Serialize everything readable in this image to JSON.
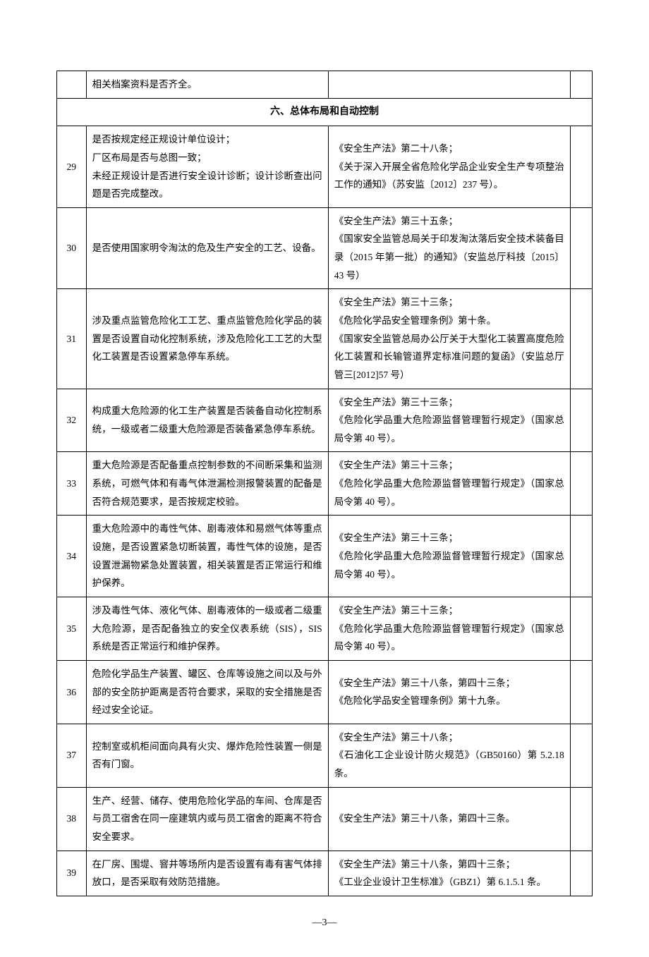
{
  "topRow": {
    "desc": "相关档案资料是否齐全。"
  },
  "sectionHeader": "六、总体布局和自动控制",
  "rows": [
    {
      "num": "29",
      "desc": "是否按规定经正规设计单位设计；\n厂区布局是否与总图一致；\n未经正规设计是否进行安全设计诊断；设计诊断查出问题是否完成整改。",
      "ref": "《安全生产法》第二十八条；\n《关于深入开展全省危险化学品企业安全生产专项整治工作的通知》（苏安监〔2012〕237 号）。"
    },
    {
      "num": "30",
      "desc": "是否使用国家明令淘汰的危及生产安全的工艺、设备。",
      "ref": "《安全生产法》第三十五条；\n《国家安全监管总局关于印发淘汰落后安全技术装备目录（2015 年第一批）的通知》（安监总厅科技〔2015〕43 号）"
    },
    {
      "num": "31",
      "desc": "涉及重点监管危险化工工艺、重点监管危险化学品的装置是否设置自动化控制系统，涉及危险化工工艺的大型化工装置是否设置紧急停车系统。",
      "ref": "《安全生产法》第三十三条；\n《危险化学品安全管理条例》第十条。\n《国家安全监管总局办公厅关于大型化工装置高度危险化工装置和长输管道界定标准问题的复函》（安监总厅管三[2012]57 号）"
    },
    {
      "num": "32",
      "desc": "构成重大危险源的化工生产装置是否装备自动化控制系统，一级或者二级重大危险源是否装备紧急停车系统。",
      "ref": "《安全生产法》第三十三条；\n《危险化学品重大危险源监督管理暂行规定》（国家总局令第 40 号）。"
    },
    {
      "num": "33",
      "desc": "重大危险源是否配备重点控制参数的不间断采集和监测系统，可燃气体和有毒气体泄漏检测报警装置的配备是否符合规范要求，是否按规定校验。",
      "ref": "《安全生产法》第三十三条；\n《危险化学品重大危险源监督管理暂行规定》（国家总局令第 40 号）。"
    },
    {
      "num": "34",
      "desc": "重大危险源中的毒性气体、剧毒液体和易燃气体等重点设施，是否设置紧急切断装置，毒性气体的设施，是否设置泄漏物紧急处置装置，相关装置是否正常运行和维护保养。",
      "ref": "《安全生产法》第三十三条；\n《危险化学品重大危险源监督管理暂行规定》（国家总局令第 40 号）。"
    },
    {
      "num": "35",
      "desc": "涉及毒性气体、液化气体、剧毒液体的一级或者二级重大危险源，是否配备独立的安全仪表系统（SIS），SIS 系统是否正常运行和维护保养。",
      "ref": "《安全生产法》第三十三条；\n《危险化学品重大危险源监督管理暂行规定》（国家总局令第 40 号）。"
    },
    {
      "num": "36",
      "desc": "危险化学品生产装置、罐区、仓库等设施之间以及与外部的安全防护距离是否符合要求，采取的安全措施是否经过安全论证。",
      "ref": "《安全生产法》第三十八条，第四十三条；\n《危险化学品安全管理条例》第十九条。"
    },
    {
      "num": "37",
      "desc": "控制室或机柜间面向具有火灾、爆炸危险性装置一侧是否有门窗。",
      "ref": "《安全生产法》第三十八条；\n《石油化工企业设计防火规范》（GB50160）第 5.2.18 条。"
    },
    {
      "num": "38",
      "desc": "生产、经营、储存、使用危险化学品的车间、仓库是否与员工宿舍在同一座建筑内或与员工宿舍的距离不符合安全要求。",
      "ref": "《安全生产法》第三十八条，第四十三条。"
    },
    {
      "num": "39",
      "desc": "在厂房、围堤、窨井等场所内是否设置有毒有害气体排放口，是否采取有效防范措施。",
      "ref": "《安全生产法》第三十八条，第四十三条；\n《工业企业设计卫生标准》（GBZ1）第 6.1.5.1 条。"
    }
  ],
  "pageNumber": "—3—"
}
